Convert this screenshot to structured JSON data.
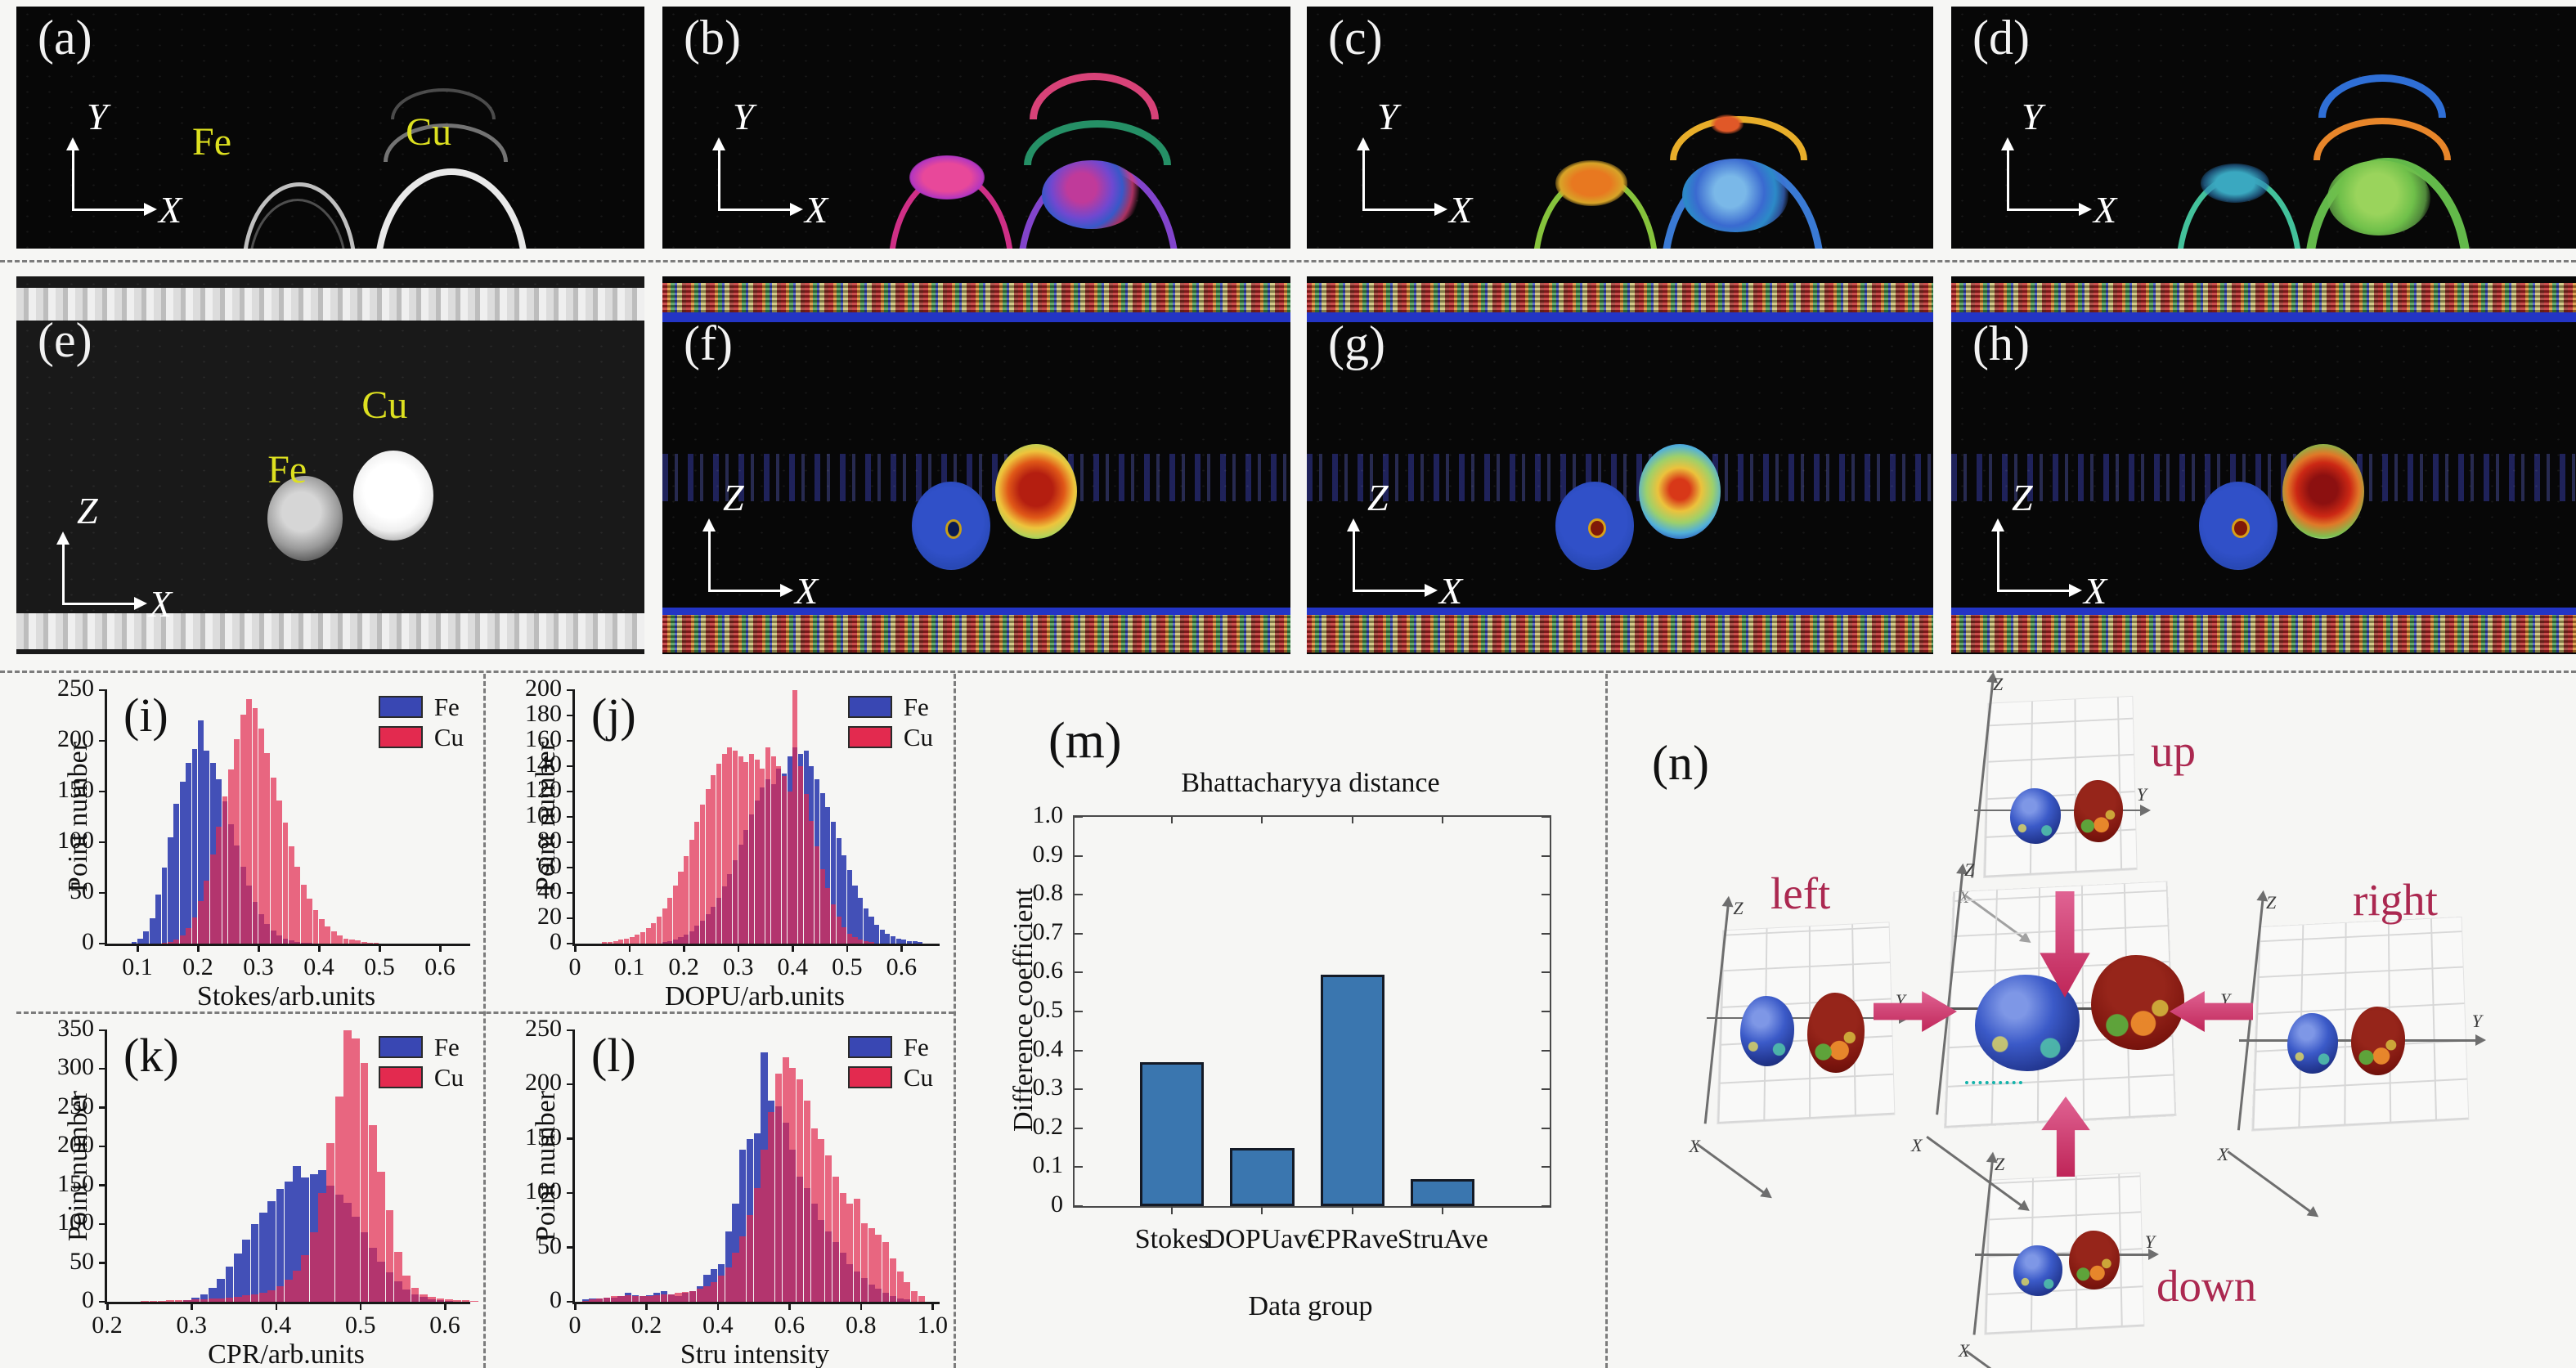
{
  "colors": {
    "fe_series": "#3947b3",
    "cu_series": "#e32a4f",
    "bar_blue": "#3a76af",
    "annotation_crimson": "#ab2850",
    "material_label_yellow": "#dde020"
  },
  "panels": {
    "a": {
      "label": "(a)",
      "axis_v": "Y",
      "axis_h": "X",
      "fe_label": "Fe",
      "cu_label": "Cu"
    },
    "b": {
      "label": "(b)",
      "axis_v": "Y",
      "axis_h": "X"
    },
    "c": {
      "label": "(c)",
      "axis_v": "Y",
      "axis_h": "X"
    },
    "d": {
      "label": "(d)",
      "axis_v": "Y",
      "axis_h": "X"
    },
    "e": {
      "label": "(e)",
      "axis_v": "Z",
      "axis_h": "X",
      "fe_label": "Fe",
      "cu_label": "Cu"
    },
    "f": {
      "label": "(f)",
      "axis_v": "Z",
      "axis_h": "X"
    },
    "g": {
      "label": "(g)",
      "axis_v": "Z",
      "axis_h": "X"
    },
    "h": {
      "label": "(h)",
      "axis_v": "Z",
      "axis_h": "X"
    },
    "n": {
      "label": "(n)",
      "view_labels": {
        "up": "up",
        "down": "down",
        "left": "left",
        "right": "right"
      },
      "axis_labels": {
        "v": "Z",
        "h": "Y",
        "d": "X"
      }
    }
  },
  "chart_data": [
    {
      "id": "i",
      "type": "histogram",
      "panel_label": "(i)",
      "xlabel": "Stokes/arb.units",
      "ylabel": "Point number",
      "xlim": [
        0.05,
        0.65
      ],
      "ylim": [
        0,
        250
      ],
      "xticks": [
        [
          0.1,
          "0.1"
        ],
        [
          0.2,
          "0.2"
        ],
        [
          0.3,
          "0.3"
        ],
        [
          0.4,
          "0.4"
        ],
        [
          0.5,
          "0.5"
        ],
        [
          0.6,
          "0.6"
        ]
      ],
      "yticks": [
        [
          0,
          "0"
        ],
        [
          50,
          "50"
        ],
        [
          100,
          "100"
        ],
        [
          150,
          "150"
        ],
        [
          200,
          "200"
        ],
        [
          250,
          "250"
        ]
      ],
      "bin_width": 0.01,
      "series": [
        {
          "name": "Fe",
          "color": "#3947b3",
          "start": 0.09,
          "values": [
            2,
            5,
            12,
            25,
            48,
            75,
            105,
            138,
            160,
            178,
            192,
            220,
            190,
            178,
            162,
            140,
            118,
            97,
            76,
            57,
            41,
            29,
            19,
            13,
            8,
            5,
            3,
            2,
            1,
            1
          ]
        },
        {
          "name": "Cu",
          "color": "#e32a4f",
          "start": 0.14,
          "values": [
            1,
            2,
            4,
            8,
            15,
            26,
            42,
            62,
            88,
            115,
            145,
            172,
            202,
            226,
            241,
            232,
            212,
            188,
            164,
            141,
            119,
            96,
            76,
            58,
            44,
            33,
            24,
            17,
            12,
            8,
            5,
            4,
            3,
            2,
            1,
            1
          ]
        }
      ]
    },
    {
      "id": "j",
      "type": "histogram",
      "panel_label": "(j)",
      "xlabel": "DOPU/arb.units",
      "ylabel": "Point number",
      "xlim": [
        0,
        0.67
      ],
      "ylim": [
        0,
        200
      ],
      "xticks": [
        [
          0,
          "0"
        ],
        [
          0.1,
          "0.1"
        ],
        [
          0.2,
          "0.2"
        ],
        [
          0.3,
          "0.3"
        ],
        [
          0.4,
          "0.4"
        ],
        [
          0.5,
          "0.5"
        ],
        [
          0.6,
          "0.6"
        ]
      ],
      "yticks": [
        [
          0,
          "0"
        ],
        [
          20,
          "20"
        ],
        [
          40,
          "40"
        ],
        [
          60,
          "60"
        ],
        [
          80,
          "80"
        ],
        [
          100,
          "100"
        ],
        [
          120,
          "120"
        ],
        [
          140,
          "140"
        ],
        [
          160,
          "160"
        ],
        [
          180,
          "180"
        ],
        [
          200,
          "200"
        ]
      ],
      "bin_width": 0.01,
      "series": [
        {
          "name": "Fe",
          "color": "#3947b3",
          "start": 0.16,
          "values": [
            1,
            2,
            3,
            5,
            7,
            10,
            14,
            18,
            23,
            29,
            36,
            45,
            55,
            66,
            78,
            90,
            102,
            113,
            123,
            130,
            126,
            138,
            134,
            148,
            155,
            150,
            152,
            140,
            130,
            119,
            108,
            96,
            83,
            70,
            58,
            46,
            36,
            28,
            21,
            15,
            11,
            8,
            6,
            4,
            3,
            2,
            2,
            1
          ]
        },
        {
          "name": "Cu",
          "color": "#e32a4f",
          "start": 0.05,
          "values": [
            1,
            1,
            2,
            3,
            4,
            5,
            7,
            9,
            12,
            16,
            21,
            28,
            36,
            46,
            57,
            69,
            82,
            96,
            110,
            122,
            133,
            142,
            150,
            155,
            152,
            148,
            143,
            150,
            145,
            138,
            155,
            148,
            140,
            132,
            120,
            200,
            140,
            118,
            97,
            77,
            59,
            44,
            31,
            21,
            13,
            8,
            5,
            3,
            2,
            1
          ]
        }
      ]
    },
    {
      "id": "k",
      "type": "histogram",
      "panel_label": "(k)",
      "xlabel": "CPR/arb.units",
      "ylabel": "Point number",
      "xlim": [
        0.2,
        0.63
      ],
      "ylim": [
        0,
        350
      ],
      "xticks": [
        [
          0.2,
          "0.2"
        ],
        [
          0.3,
          "0.3"
        ],
        [
          0.4,
          "0.4"
        ],
        [
          0.5,
          "0.5"
        ],
        [
          0.6,
          "0.6"
        ]
      ],
      "yticks": [
        [
          0,
          "0"
        ],
        [
          50,
          "50"
        ],
        [
          100,
          "100"
        ],
        [
          150,
          "150"
        ],
        [
          200,
          "200"
        ],
        [
          250,
          "250"
        ],
        [
          300,
          "300"
        ],
        [
          350,
          "350"
        ]
      ],
      "bin_width": 0.01,
      "series": [
        {
          "name": "Fe",
          "color": "#3947b3",
          "start": 0.29,
          "values": [
            2,
            5,
            10,
            18,
            30,
            45,
            62,
            80,
            100,
            115,
            130,
            145,
            155,
            175,
            160,
            165,
            170,
            150,
            138,
            128,
            110,
            90,
            70,
            52,
            38,
            26,
            16,
            10,
            6,
            3,
            2,
            1
          ]
        },
        {
          "name": "Cu",
          "color": "#e32a4f",
          "start": 0.24,
          "values": [
            1,
            1,
            1,
            2,
            2,
            2,
            3,
            3,
            4,
            4,
            5,
            6,
            8,
            10,
            12,
            15,
            20,
            28,
            40,
            60,
            90,
            140,
            205,
            265,
            350,
            340,
            308,
            228,
            168,
            118,
            64,
            34,
            18,
            10,
            6,
            4,
            3,
            2,
            2,
            1
          ]
        }
      ]
    },
    {
      "id": "l",
      "type": "histogram",
      "panel_label": "(l)",
      "xlabel": "Stru intensity",
      "ylabel": "Point number",
      "xlim": [
        0,
        1.02
      ],
      "ylim": [
        0,
        250
      ],
      "xticks": [
        [
          0,
          "0"
        ],
        [
          0.2,
          "0.2"
        ],
        [
          0.4,
          "0.4"
        ],
        [
          0.6,
          "0.6"
        ],
        [
          0.8,
          "0.8"
        ],
        [
          1.0,
          "1.0"
        ]
      ],
      "yticks": [
        [
          0,
          "0"
        ],
        [
          50,
          "50"
        ],
        [
          100,
          "100"
        ],
        [
          150,
          "150"
        ],
        [
          200,
          "200"
        ],
        [
          250,
          "250"
        ]
      ],
      "bin_width": 0.02,
      "series": [
        {
          "name": "Fe",
          "color": "#3947b3",
          "start": 0.02,
          "values": [
            2,
            3,
            3,
            4,
            4,
            5,
            8,
            6,
            5,
            6,
            8,
            10,
            7,
            5,
            8,
            10,
            14,
            25,
            30,
            35,
            65,
            90,
            140,
            150,
            155,
            230,
            185,
            180,
            165,
            140,
            115,
            105,
            90,
            75,
            65,
            55,
            45,
            35,
            28,
            22,
            16,
            12,
            8,
            5,
            3,
            2
          ]
        },
        {
          "name": "Cu",
          "color": "#e32a4f",
          "start": 0.02,
          "values": [
            1,
            2,
            3,
            4,
            5,
            5,
            6,
            5,
            5,
            5,
            6,
            7,
            7,
            8,
            9,
            10,
            12,
            14,
            18,
            24,
            32,
            45,
            60,
            80,
            105,
            140,
            175,
            210,
            225,
            215,
            205,
            185,
            160,
            150,
            135,
            115,
            100,
            90,
            95,
            72,
            68,
            62,
            55,
            40,
            28,
            18,
            10,
            5
          ]
        }
      ]
    },
    {
      "id": "m",
      "type": "bar",
      "panel_label": "(m)",
      "title": "Bhattacharyya distance",
      "xlabel": "Data group",
      "ylabel": "Difference coefficient",
      "ylim": [
        0,
        1.0
      ],
      "yticks": [
        [
          0,
          "0"
        ],
        [
          0.1,
          "0.1"
        ],
        [
          0.2,
          "0.2"
        ],
        [
          0.3,
          "0.3"
        ],
        [
          0.4,
          "0.4"
        ],
        [
          0.5,
          "0.5"
        ],
        [
          0.6,
          "0.6"
        ],
        [
          0.7,
          "0.7"
        ],
        [
          0.8,
          "0.8"
        ],
        [
          0.9,
          "0.9"
        ],
        [
          1.0,
          "1.0"
        ]
      ],
      "categories": [
        "Stokes",
        "DOPUave",
        "CPRave",
        "StruAve"
      ],
      "values": [
        0.37,
        0.15,
        0.595,
        0.07
      ],
      "bar_color": "#3a76af"
    }
  ]
}
